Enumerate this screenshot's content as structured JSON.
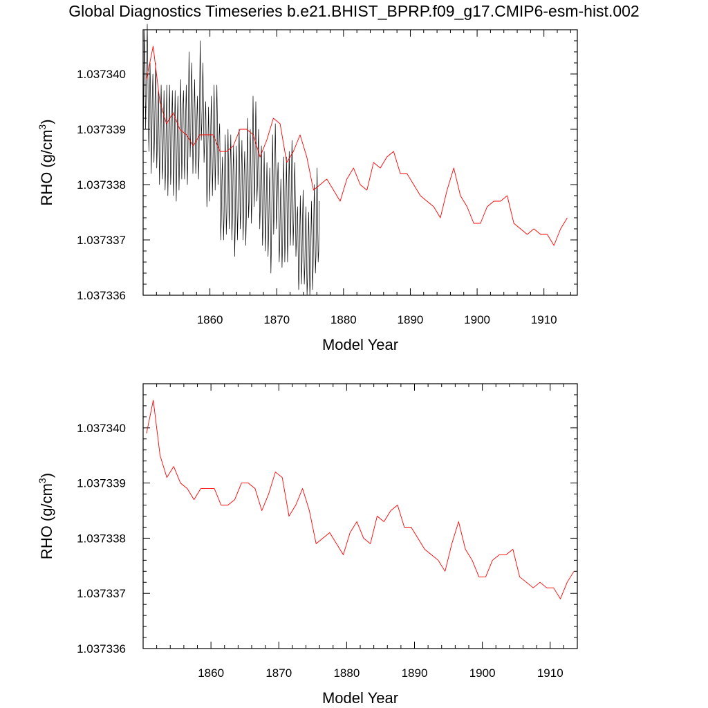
{
  "title": "Global Diagnostics Timeseries b.e21.BHIST_BPRP.f09_g17.CMIP6-esm-hist.002",
  "colors": {
    "monthly": "#000000",
    "annual": "#ff0000",
    "axis": "#000000"
  },
  "chart_data": [
    {
      "type": "line",
      "xlabel": "Model Year",
      "ylabel_main": "RHO (g/cm",
      "ylabel_sup": "3",
      "ylabel_close": ")",
      "xlim": [
        1850,
        1915
      ],
      "ylim": [
        1.037336,
        1.0373408
      ],
      "xticks": [
        "1860",
        "1870",
        "1880",
        "1890",
        "1900",
        "1910"
      ],
      "yticks": [
        "1.037336",
        "1.037337",
        "1.037338",
        "1.037339",
        "1.037340"
      ],
      "grid": false,
      "series": [
        {
          "style": "monthly",
          "color": "#000000",
          "x_start": 1850.04,
          "x_step": 0.08333,
          "values": [
            1.037339,
            1.0373401,
            1.0373408,
            1.0373401,
            1.037339,
            1.0373396,
            1.0373403,
            1.0373409,
            1.0373401,
            1.0373391,
            1.0373386,
            1.0373393,
            1.0373402,
            1.0373395,
            1.0373382,
            1.0373388,
            1.0373396,
            1.03734,
            1.0373392,
            1.0373384,
            1.0373389,
            1.0373396,
            1.0373402,
            1.0373394,
            1.0373383,
            1.0373387,
            1.0373394,
            1.0373397,
            1.0373389,
            1.037338,
            1.0373386,
            1.0373393,
            1.0373398,
            1.037339,
            1.0373381,
            1.0373384,
            1.0373391,
            1.0373397,
            1.0373389,
            1.0373379,
            1.0373383,
            1.0373391,
            1.0373398,
            1.0373389,
            1.0373378,
            1.0373384,
            1.0373393,
            1.0373398,
            1.037339,
            1.037338,
            1.0373383,
            1.0373392,
            1.0373397,
            1.0373389,
            1.0373378,
            1.0373382,
            1.0373391,
            1.0373397,
            1.0373388,
            1.0373377,
            1.0373383,
            1.0373391,
            1.0373396,
            1.0373388,
            1.0373379,
            1.0373384,
            1.0373393,
            1.0373399,
            1.0373391,
            1.0373381,
            1.0373386,
            1.0373394,
            1.0373397,
            1.037339,
            1.0373381,
            1.0373385,
            1.0373393,
            1.0373398,
            1.037339,
            1.037338,
            1.0373385,
            1.0373395,
            1.0373404,
            1.0373396,
            1.0373385,
            1.0373389,
            1.0373398,
            1.0373402,
            1.0373393,
            1.0373382,
            1.0373387,
            1.0373394,
            1.0373399,
            1.0373391,
            1.0373382,
            1.0373385,
            1.0373392,
            1.0373396,
            1.037339,
            1.0373381,
            1.0373385,
            1.0373396,
            1.0373406,
            1.0373398,
            1.0373388,
            1.0373391,
            1.0373397,
            1.0373402,
            1.0373394,
            1.0373384,
            1.0373387,
            1.0373392,
            1.0373395,
            1.0373386,
            1.0373376,
            1.037338,
            1.0373388,
            1.0373394,
            1.0373387,
            1.0373377,
            1.0373382,
            1.037339,
            1.0373396,
            1.0373389,
            1.0373378,
            1.0373383,
            1.0373391,
            1.0373398,
            1.037339,
            1.0373379,
            1.0373384,
            1.0373392,
            1.0373398,
            1.0373391,
            1.037338,
            1.0373383,
            1.0373389,
            1.0373391,
            1.0373382,
            1.037337,
            1.0373374,
            1.0373381,
            1.0373385,
            1.0373377,
            1.037337,
            1.0373374,
            1.0373383,
            1.0373389,
            1.0373381,
            1.0373371,
            1.0373375,
            1.0373384,
            1.037339,
            1.0373382,
            1.0373372,
            1.0373376,
            1.0373384,
            1.0373389,
            1.0373381,
            1.037337,
            1.0373374,
            1.0373382,
            1.0373387,
            1.037338,
            1.0373367,
            1.0373372,
            1.0373381,
            1.0373387,
            1.037338,
            1.037337,
            1.0373375,
            1.0373384,
            1.037339,
            1.0373382,
            1.0373372,
            1.0373375,
            1.0373383,
            1.0373388,
            1.037338,
            1.037337,
            1.0373374,
            1.0373382,
            1.0373386,
            1.0373378,
            1.0373369,
            1.0373374,
            1.0373383,
            1.0373392,
            1.0373384,
            1.0373374,
            1.0373377,
            1.0373385,
            1.037339,
            1.0373383,
            1.0373373,
            1.0373377,
            1.0373387,
            1.0373396,
            1.0373388,
            1.0373376,
            1.037338,
            1.0373388,
            1.0373395,
            1.0373387,
            1.0373377,
            1.037338,
            1.0373386,
            1.037339,
            1.0373382,
            1.0373372,
            1.0373376,
            1.0373384,
            1.0373387,
            1.0373379,
            1.0373369,
            1.0373372,
            1.037338,
            1.0373386,
            1.0373378,
            1.0373368,
            1.0373372,
            1.0373379,
            1.0373384,
            1.0373376,
            1.0373367,
            1.0373371,
            1.0373378,
            1.0373383,
            1.0373375,
            1.0373364,
            1.0373369,
            1.037338,
            1.0373389,
            1.0373381,
            1.0373371,
            1.0373375,
            1.0373384,
            1.0373391,
            1.0373383,
            1.0373372,
            1.0373375,
            1.0373381,
            1.0373384,
            1.0373377,
            1.0373366,
            1.0373369,
            1.0373376,
            1.0373381,
            1.0373373,
            1.0373365,
            1.0373369,
            1.0373378,
            1.0373385,
            1.0373377,
            1.0373366,
            1.037337,
            1.0373378,
            1.0373385,
            1.0373377,
            1.0373366,
            1.0373371,
            1.037338,
            1.0373386,
            1.0373379,
            1.0373369,
            1.0373373,
            1.0373381,
            1.0373388,
            1.037338,
            1.0373369,
            1.0373373,
            1.037338,
            1.0373384,
            1.0373377,
            1.0373367,
            1.037337,
            1.0373374,
            1.0373376,
            1.0373368,
            1.0373361,
            1.0373364,
            1.0373372,
            1.0373378,
            1.037337,
            1.0373362,
            1.0373366,
            1.0373374,
            1.0373379,
            1.0373371,
            1.0373362,
            1.0373365,
            1.0373372,
            1.0373376,
            1.0373368,
            1.037336,
            1.0373363,
            1.037337,
            1.0373375,
            1.0373367,
            1.037336,
            1.0373363,
            1.0373371,
            1.0373377,
            1.0373369,
            1.0373361,
            1.0373365,
            1.0373373,
            1.037338,
            1.0373373,
            1.0373364,
            1.0373367,
            1.0373376,
            1.0373383,
            1.0373374,
            1.0373366,
            1.0373368,
            1.0373377
          ]
        },
        {
          "style": "annual",
          "color": "#ff0000",
          "x": [
            1850.5,
            1851.5,
            1852.5,
            1853.5,
            1854.5,
            1855.5,
            1856.5,
            1857.5,
            1858.5,
            1859.5,
            1860.5,
            1861.5,
            1862.5,
            1863.5,
            1864.5,
            1865.5,
            1866.5,
            1867.5,
            1868.5,
            1869.5,
            1870.5,
            1871.5,
            1872.5,
            1873.5,
            1874.5,
            1875.5,
            1876.5,
            1877.5,
            1878.5,
            1879.5,
            1880.5,
            1881.5,
            1882.5,
            1883.5,
            1884.5,
            1885.5,
            1886.5,
            1887.5,
            1888.5,
            1889.5,
            1890.5,
            1891.5,
            1892.5,
            1893.5,
            1894.5,
            1895.5,
            1896.5,
            1897.5,
            1898.5,
            1899.5,
            1900.5,
            1901.5,
            1902.5,
            1903.5,
            1904.5,
            1905.5,
            1906.5,
            1907.5,
            1908.5,
            1909.5,
            1910.5,
            1911.5,
            1912.5,
            1913.5
          ],
          "values": [
            1.0373399,
            1.0373405,
            1.0373395,
            1.0373391,
            1.0373393,
            1.037339,
            1.0373389,
            1.0373387,
            1.0373389,
            1.0373389,
            1.0373389,
            1.0373386,
            1.0373386,
            1.0373387,
            1.037339,
            1.037339,
            1.0373389,
            1.0373385,
            1.0373388,
            1.0373392,
            1.0373391,
            1.0373384,
            1.0373386,
            1.0373389,
            1.0373385,
            1.0373379,
            1.037338,
            1.0373381,
            1.0373379,
            1.0373377,
            1.0373381,
            1.0373383,
            1.037338,
            1.0373379,
            1.0373384,
            1.0373383,
            1.0373385,
            1.0373386,
            1.0373382,
            1.0373382,
            1.037338,
            1.0373378,
            1.0373377,
            1.0373376,
            1.0373374,
            1.0373379,
            1.0373383,
            1.0373378,
            1.0373376,
            1.0373373,
            1.0373373,
            1.0373376,
            1.0373377,
            1.0373377,
            1.0373378,
            1.0373373,
            1.0373372,
            1.0373371,
            1.0373372,
            1.0373371,
            1.0373371,
            1.0373369,
            1.0373372,
            1.0373374
          ]
        }
      ]
    },
    {
      "type": "line",
      "xlabel": "Model Year",
      "ylabel_main": "RHO (g/cm",
      "ylabel_sup": "3",
      "ylabel_close": ")",
      "xlim": [
        1850,
        1914
      ],
      "ylim": [
        1.037336,
        1.0373408
      ],
      "xticks": [
        "1860",
        "1870",
        "1880",
        "1890",
        "1900",
        "1910"
      ],
      "yticks": [
        "1.037336",
        "1.037337",
        "1.037338",
        "1.037339",
        "1.037340"
      ],
      "grid": false,
      "series": [
        {
          "style": "annual",
          "color": "#ff0000",
          "x": [
            1850.5,
            1851.5,
            1852.5,
            1853.5,
            1854.5,
            1855.5,
            1856.5,
            1857.5,
            1858.5,
            1859.5,
            1860.5,
            1861.5,
            1862.5,
            1863.5,
            1864.5,
            1865.5,
            1866.5,
            1867.5,
            1868.5,
            1869.5,
            1870.5,
            1871.5,
            1872.5,
            1873.5,
            1874.5,
            1875.5,
            1876.5,
            1877.5,
            1878.5,
            1879.5,
            1880.5,
            1881.5,
            1882.5,
            1883.5,
            1884.5,
            1885.5,
            1886.5,
            1887.5,
            1888.5,
            1889.5,
            1890.5,
            1891.5,
            1892.5,
            1893.5,
            1894.5,
            1895.5,
            1896.5,
            1897.5,
            1898.5,
            1899.5,
            1900.5,
            1901.5,
            1902.5,
            1903.5,
            1904.5,
            1905.5,
            1906.5,
            1907.5,
            1908.5,
            1909.5,
            1910.5,
            1911.5,
            1912.5,
            1913.5
          ],
          "values": [
            1.0373399,
            1.0373405,
            1.0373395,
            1.0373391,
            1.0373393,
            1.037339,
            1.0373389,
            1.0373387,
            1.0373389,
            1.0373389,
            1.0373389,
            1.0373386,
            1.0373386,
            1.0373387,
            1.037339,
            1.037339,
            1.0373389,
            1.0373385,
            1.0373388,
            1.0373392,
            1.0373391,
            1.0373384,
            1.0373386,
            1.0373389,
            1.0373385,
            1.0373379,
            1.037338,
            1.0373381,
            1.0373379,
            1.0373377,
            1.0373381,
            1.0373383,
            1.037338,
            1.0373379,
            1.0373384,
            1.0373383,
            1.0373385,
            1.0373386,
            1.0373382,
            1.0373382,
            1.037338,
            1.0373378,
            1.0373377,
            1.0373376,
            1.0373374,
            1.0373379,
            1.0373383,
            1.0373378,
            1.0373376,
            1.0373373,
            1.0373373,
            1.0373376,
            1.0373377,
            1.0373377,
            1.0373378,
            1.0373373,
            1.0373372,
            1.0373371,
            1.0373372,
            1.0373371,
            1.0373371,
            1.0373369,
            1.0373372,
            1.0373374
          ]
        }
      ]
    }
  ]
}
